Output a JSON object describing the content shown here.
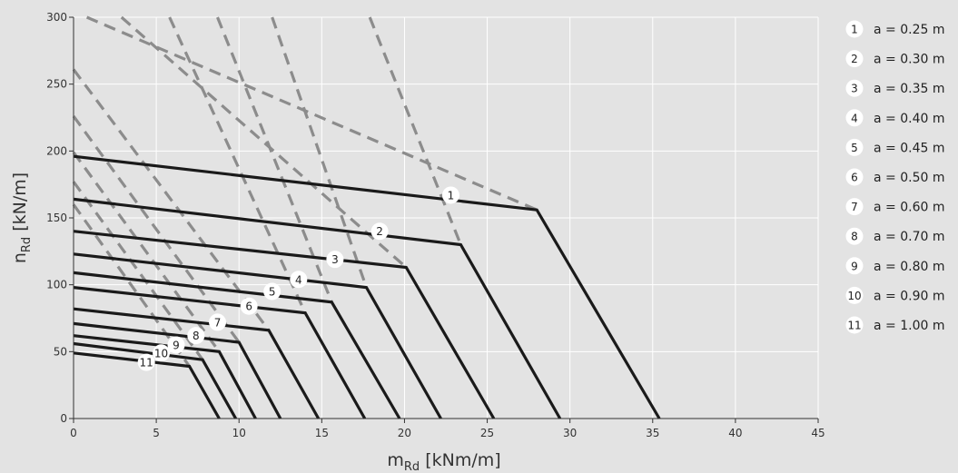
{
  "chart_data": {
    "type": "line",
    "xlabel": {
      "main": "m",
      "sub": "Rd",
      "unit": " [kNm/m]"
    },
    "ylabel": {
      "main": "n",
      "sub": "Rd",
      "unit": " [kN/m]"
    },
    "xlim": [
      0,
      45
    ],
    "ylim": [
      0,
      300
    ],
    "xticks": [
      0,
      5,
      10,
      15,
      20,
      25,
      30,
      35,
      40,
      45
    ],
    "yticks": [
      0,
      50,
      100,
      150,
      200,
      250,
      300
    ],
    "grid": true,
    "legend_position": "right",
    "colors": {
      "background": "#e3e3e3",
      "grid": "#ffffff",
      "solid": "#1a1a1a",
      "dashed": "#8c8c8c",
      "badge_fill": "#ffffff"
    },
    "series": [
      {
        "name": "1",
        "legend": "a = 0.25 m",
        "label_at": [
          22.8,
          167
        ],
        "solid": [
          [
            0,
            196
          ],
          [
            28.0,
            156
          ],
          [
            35.4,
            0
          ]
        ],
        "dashed": [
          [
            0.8,
            300
          ],
          [
            28.0,
            156
          ]
        ]
      },
      {
        "name": "2",
        "legend": "a = 0.30 m",
        "label_at": [
          18.5,
          140
        ],
        "solid": [
          [
            0,
            164
          ],
          [
            23.4,
            130
          ],
          [
            29.4,
            0
          ]
        ],
        "dashed": [
          [
            17.9,
            300
          ],
          [
            23.4,
            130
          ]
        ]
      },
      {
        "name": "3",
        "legend": "a = 0.35 m",
        "label_at": [
          15.8,
          119
        ],
        "solid": [
          [
            0,
            140
          ],
          [
            20.1,
            113
          ],
          [
            25.4,
            0
          ]
        ],
        "dashed": [
          [
            2.9,
            300
          ],
          [
            20.1,
            113
          ]
        ]
      },
      {
        "name": "4",
        "legend": "a = 0.40 m",
        "label_at": [
          13.6,
          104
        ],
        "solid": [
          [
            0,
            123
          ],
          [
            17.7,
            98
          ],
          [
            22.2,
            0
          ]
        ],
        "dashed": [
          [
            12.0,
            300
          ],
          [
            17.7,
            98
          ]
        ]
      },
      {
        "name": "5",
        "legend": "a = 0.45 m",
        "label_at": [
          12.0,
          95
        ],
        "solid": [
          [
            0,
            109
          ],
          [
            15.6,
            87
          ],
          [
            19.7,
            0
          ]
        ],
        "dashed": [
          [
            8.7,
            300
          ],
          [
            15.6,
            87
          ]
        ]
      },
      {
        "name": "6",
        "legend": "a = 0.50 m",
        "label_at": [
          10.6,
          84
        ],
        "solid": [
          [
            0,
            98
          ],
          [
            14.0,
            79
          ],
          [
            17.6,
            0
          ]
        ],
        "dashed": [
          [
            5.8,
            300
          ],
          [
            14.0,
            79
          ]
        ]
      },
      {
        "name": "7",
        "legend": "a = 0.60 m",
        "label_at": [
          8.7,
          72
        ],
        "solid": [
          [
            0,
            82
          ],
          [
            11.8,
            66
          ],
          [
            14.8,
            0
          ]
        ],
        "dashed": [
          [
            0,
            261
          ],
          [
            11.8,
            66
          ]
        ]
      },
      {
        "name": "8",
        "legend": "a = 0.70 m",
        "label_at": [
          7.4,
          62
        ],
        "solid": [
          [
            0,
            71
          ],
          [
            10.0,
            57
          ],
          [
            12.5,
            0
          ]
        ],
        "dashed": [
          [
            0,
            226
          ],
          [
            10.0,
            57
          ]
        ]
      },
      {
        "name": "9",
        "legend": "a = 0.80 m",
        "label_at": [
          6.2,
          55
        ],
        "solid": [
          [
            0,
            62
          ],
          [
            8.8,
            50
          ],
          [
            11.0,
            0
          ]
        ],
        "dashed": [
          [
            0,
            199
          ],
          [
            8.8,
            50
          ]
        ]
      },
      {
        "name": "10",
        "legend": "a = 0.90 m",
        "label_at": [
          5.3,
          49
        ],
        "solid": [
          [
            0,
            56
          ],
          [
            7.8,
            44
          ],
          [
            9.8,
            0
          ]
        ],
        "dashed": [
          [
            0,
            177
          ],
          [
            7.8,
            44
          ]
        ]
      },
      {
        "name": "11",
        "legend": "a = 1.00 m",
        "label_at": [
          4.4,
          42
        ],
        "solid": [
          [
            0,
            49
          ],
          [
            7.0,
            39
          ],
          [
            8.8,
            0
          ]
        ],
        "dashed": [
          [
            0,
            160
          ],
          [
            7.0,
            39
          ]
        ]
      }
    ]
  }
}
